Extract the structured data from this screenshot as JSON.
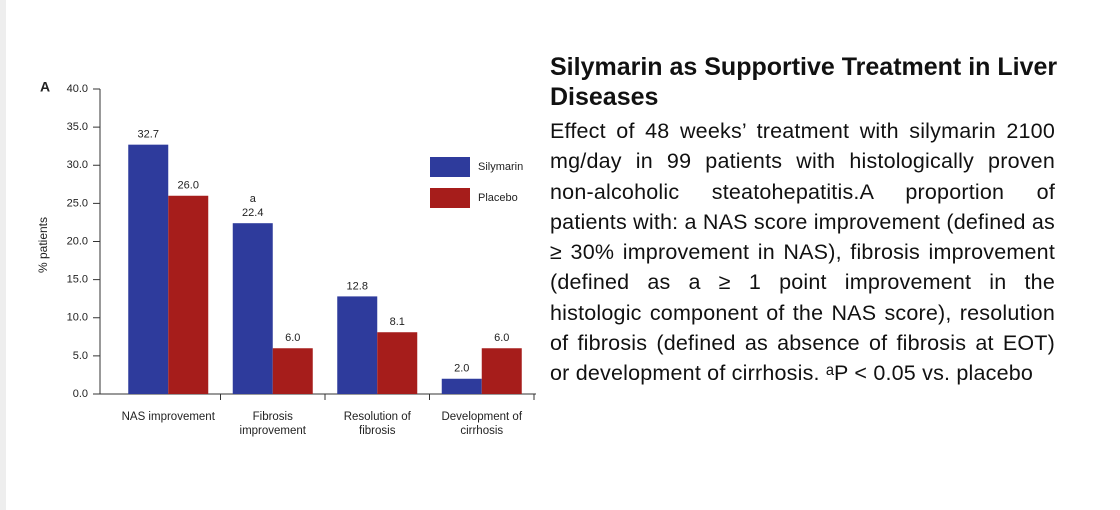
{
  "chart_data": {
    "type": "bar",
    "panel_label": "A",
    "ylabel": "% patients",
    "categories": [
      "NAS improvement",
      "Fibrosis improvement",
      "Resolution of fibrosis",
      "Development of cirrhosis"
    ],
    "series": [
      {
        "name": "Silymarin",
        "color": "#2e3b9c",
        "values": [
          32.7,
          22.4,
          12.8,
          2.0
        ],
        "value_labels": [
          "32.7",
          "22.4",
          "12.8",
          "2.0"
        ]
      },
      {
        "name": "Placebo",
        "color": "#a61d1b",
        "values": [
          26.0,
          6.0,
          8.1,
          6.0
        ],
        "value_labels": [
          "26.0",
          "6.0",
          "8.1",
          "6.0"
        ]
      }
    ],
    "annotation": "a",
    "ylim": [
      0,
      40
    ],
    "yticks": [
      {
        "value": 0,
        "label": "0.0"
      },
      {
        "value": 5,
        "label": "5.0"
      },
      {
        "value": 10,
        "label": "10.0"
      },
      {
        "value": 15,
        "label": "15.0"
      },
      {
        "value": 20,
        "label": "20.0"
      },
      {
        "value": 25,
        "label": "25.0"
      },
      {
        "value": 30,
        "label": "30.0"
      },
      {
        "value": 35,
        "label": "35.0"
      },
      {
        "value": 40,
        "label": "40.0"
      }
    ]
  },
  "caption": {
    "title": "Silymarin as Supportive Treatment in Liver Diseases",
    "body": "Effect of 48 weeks’ treatment with silymarin 2100 mg/day in 99 patients with histologically proven non-alcoholic steatohepatitis.A proportion of patients with: a NAS score improvement (defined as ≥ 30% improvement in NAS), fibrosis improvement (defined as a ≥ 1 point improvement in the histologic component of the NAS score), resolution of fibrosis (defined as absence of fibrosis at EOT) or development of cirrhosis. ᵃP < 0.05 vs. placebo"
  }
}
